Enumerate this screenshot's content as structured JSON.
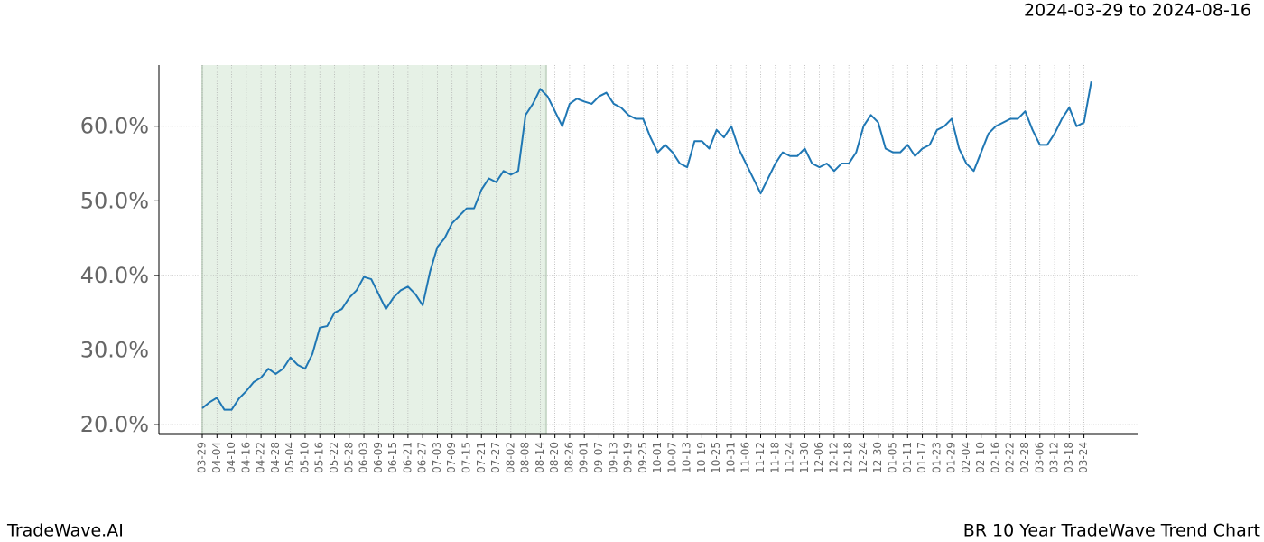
{
  "chart_data": {
    "type": "line",
    "title": "2024-03-29 to 2024-08-16",
    "footer_left": "TradeWave.AI",
    "footer_right": "BR 10 Year TradeWave Trend Chart",
    "categories": [
      "03-29",
      null,
      "04-04",
      null,
      "04-10",
      null,
      "04-16",
      null,
      "04-22",
      null,
      "04-28",
      null,
      "05-04",
      null,
      "05-10",
      null,
      "05-16",
      null,
      "05-22",
      null,
      "05-28",
      null,
      "06-03",
      null,
      "06-09",
      null,
      "06-15",
      null,
      "06-21",
      null,
      "06-27",
      null,
      "07-03",
      null,
      "07-09",
      null,
      "07-15",
      null,
      "07-21",
      null,
      "07-27",
      null,
      "08-02",
      null,
      "08-08",
      null,
      "08-14",
      null,
      "08-20",
      null,
      "08-26",
      null,
      "09-01",
      null,
      "09-07",
      null,
      "09-13",
      null,
      "09-19",
      null,
      "09-25",
      null,
      "10-01",
      null,
      "10-07",
      null,
      "10-13",
      null,
      "10-19",
      null,
      "10-25",
      null,
      "10-31",
      null,
      "11-06",
      null,
      "11-12",
      null,
      "11-18",
      null,
      "11-24",
      null,
      "11-30",
      null,
      "12-06",
      null,
      "12-12",
      null,
      "12-18",
      null,
      "12-24",
      null,
      "12-30",
      null,
      "01-05",
      null,
      "01-11",
      null,
      "01-17",
      null,
      "01-23",
      null,
      "01-29",
      null,
      "02-04",
      null,
      "02-10",
      null,
      "02-16",
      null,
      "02-22",
      null,
      "02-28",
      null,
      "03-06",
      null,
      "03-12",
      null,
      "03-18",
      null,
      "03-24",
      null
    ],
    "values": [
      22.2,
      23.0,
      23.6,
      22.0,
      22.0,
      23.5,
      24.5,
      25.7,
      26.3,
      27.5,
      26.8,
      27.5,
      29.0,
      28.0,
      27.5,
      29.5,
      33.0,
      33.2,
      35.0,
      35.5,
      37.0,
      38.0,
      39.8,
      39.5,
      37.5,
      35.5,
      37.0,
      38.0,
      38.5,
      37.5,
      36.0,
      40.5,
      43.8,
      45.0,
      47.0,
      48.0,
      49.0,
      49.0,
      51.5,
      53.0,
      52.5,
      54.0,
      53.5,
      54.0,
      61.5,
      63.0,
      65.0,
      64.0,
      62.0,
      60.0,
      63.0,
      63.7,
      63.3,
      63.0,
      64.0,
      64.5,
      63.0,
      62.5,
      61.5,
      61.0,
      61.0,
      58.5,
      56.5,
      57.5,
      56.5,
      55.0,
      54.5,
      58.0,
      58.0,
      57.0,
      59.5,
      58.5,
      60.0,
      57.0,
      55.0,
      53.0,
      51.0,
      53.0,
      55.0,
      56.5,
      56.0,
      56.0,
      57.0,
      55.0,
      54.5,
      55.0,
      54.0,
      55.0,
      55.0,
      56.5,
      60.0,
      61.5,
      60.5,
      57.0,
      56.5,
      56.5,
      57.5,
      56.0,
      57.0,
      57.5,
      59.5,
      60.0,
      61.0,
      57.0,
      55.0,
      54.0,
      56.5,
      59.0,
      60.0,
      60.5,
      61.0,
      61.0,
      62.0,
      59.5,
      57.5,
      57.5,
      59.0,
      61.0,
      62.5,
      60.0,
      60.5,
      66.0
    ],
    "color": "#1f77b4",
    "shade_color": "#e6f1e6",
    "shaded_x": [
      0,
      46.8
    ],
    "xlim": [
      -5.9,
      127.3
    ],
    "ylim": [
      18.8,
      68.2
    ],
    "yticks": [
      {
        "value": 20,
        "label": "20.0%"
      },
      {
        "value": 30,
        "label": "30.0%"
      },
      {
        "value": 40,
        "label": "40.0%"
      },
      {
        "value": 50,
        "label": "50.0%"
      },
      {
        "value": 60,
        "label": "60.0%"
      }
    ],
    "grid": true
  }
}
